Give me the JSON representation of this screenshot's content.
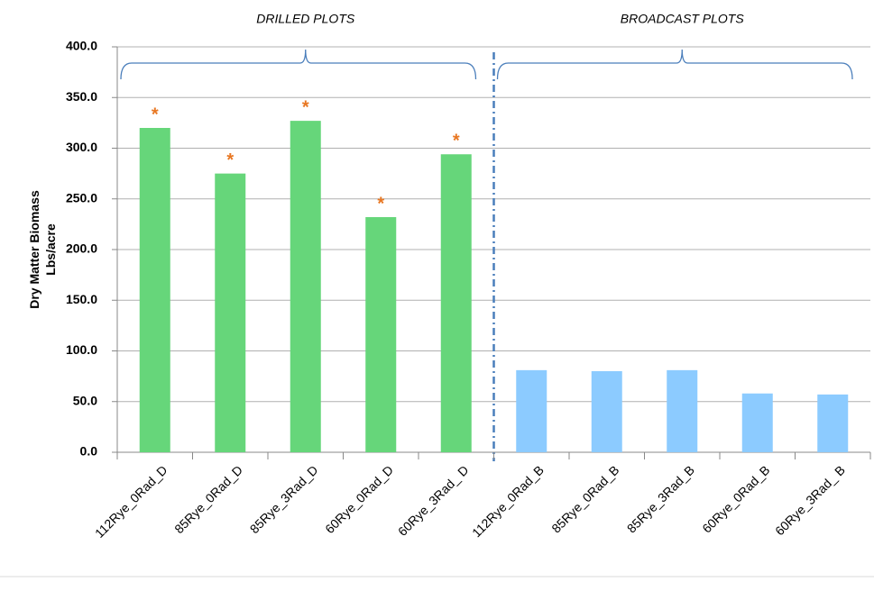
{
  "chart_data": {
    "type": "bar",
    "ylabel": [
      "Dry Matter Biomass",
      "Lbs/acre"
    ],
    "ylim": [
      0,
      400
    ],
    "yticks": [
      {
        "value": 0,
        "label": "0.0"
      },
      {
        "value": 50,
        "label": "50.0"
      },
      {
        "value": 100,
        "label": "100.0"
      },
      {
        "value": 150,
        "label": "150.0"
      },
      {
        "value": 200,
        "label": "200.0"
      },
      {
        "value": 250,
        "label": "250.0"
      },
      {
        "value": 300,
        "label": "300.0"
      },
      {
        "value": 350,
        "label": "350.0"
      },
      {
        "value": 400,
        "label": "400.0"
      }
    ],
    "grid": true,
    "groups": [
      {
        "label": "DRILLED PLOTS",
        "color": "#66d67a",
        "categories": [
          "112Rye_0Rad_D",
          "85Rye_0Rad_D",
          "85Rye_3Rad_D",
          "60Rye_0Rad_D",
          "60Rye_3Rad_ D"
        ],
        "values": [
          320,
          275,
          327,
          232,
          294
        ],
        "significance_labels": [
          "*",
          "*",
          "*",
          "*",
          "*"
        ]
      },
      {
        "label": "BROADCAST PLOTS",
        "color": "#8ccbff",
        "categories": [
          "112Rye_0Rad_B",
          "85Rye_0Rad_B",
          "85Rye_3Rad_B",
          "60Rye_0Rad_B",
          "60Rye_3Rad_ B"
        ],
        "values": [
          81,
          80,
          81,
          58,
          57
        ]
      }
    ]
  }
}
